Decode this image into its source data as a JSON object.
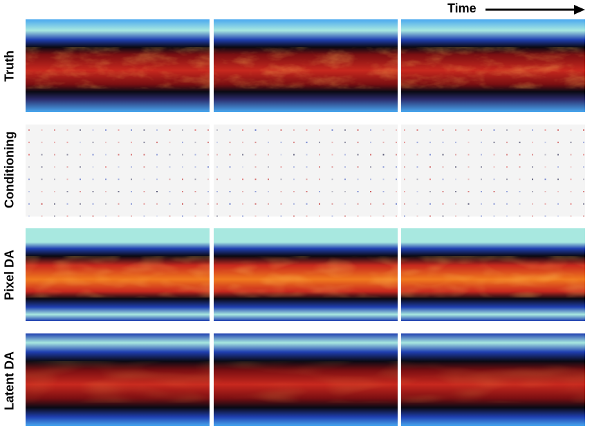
{
  "header": {
    "time_label": "Time"
  },
  "rows": [
    {
      "label": "Truth",
      "kind": "truth"
    },
    {
      "label": "Conditioning",
      "kind": "conditioning"
    },
    {
      "label": "Pixel DA",
      "kind": "pixel"
    },
    {
      "label": "Latent DA",
      "kind": "latent"
    }
  ],
  "colors": {
    "deep_blue": "#1f3fb0",
    "light_blue": "#4aa8f0",
    "cyan": "#a8e8e0",
    "black": "#0a0a14",
    "dark_red": "#7a0f12",
    "red": "#c8281e",
    "orange": "#f07a1e",
    "cond_bg": "#f4f4f4"
  }
}
